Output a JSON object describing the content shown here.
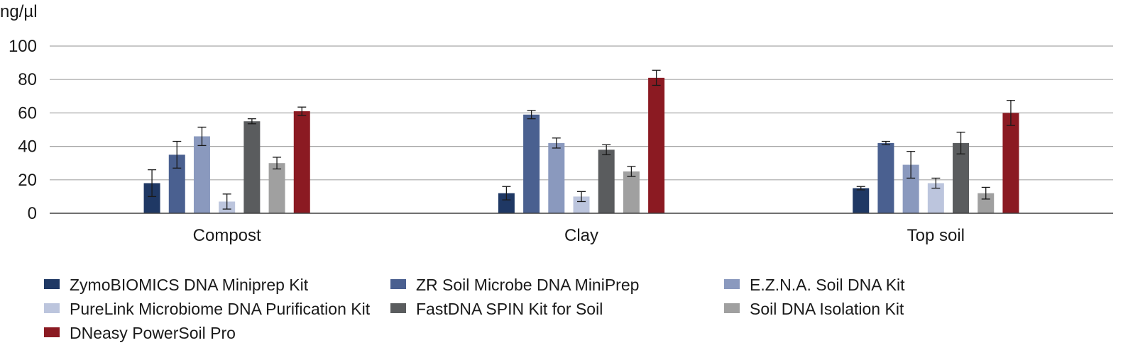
{
  "chart_data": {
    "type": "bar",
    "title": "",
    "xlabel": "",
    "ylabel": "ng/µl",
    "ylim": [
      0,
      100
    ],
    "yticks": [
      "0",
      "20",
      "40",
      "60",
      "80",
      "100"
    ],
    "grid": true,
    "legend_position": "bottom",
    "categories": [
      "Compost",
      "Clay",
      "Top soil"
    ],
    "series": [
      {
        "name": "ZymoBIOMICS DNA Miniprep Kit",
        "color": "#1f3864",
        "values": [
          18,
          12,
          15
        ],
        "errors": [
          8,
          4,
          1
        ]
      },
      {
        "name": "ZR Soil Microbe DNA MiniPrep",
        "color": "#4a6090",
        "values": [
          35,
          59,
          42
        ],
        "errors": [
          8,
          2.5,
          1
        ]
      },
      {
        "name": "E.Z.N.A. Soil DNA Kit",
        "color": "#8a99be",
        "values": [
          46,
          42,
          29
        ],
        "errors": [
          5.5,
          3,
          8
        ]
      },
      {
        "name": "PureLink Microbiome DNA Purification Kit",
        "color": "#bcc5dd",
        "values": [
          7,
          10,
          18
        ],
        "errors": [
          4.5,
          3,
          3
        ]
      },
      {
        "name": "FastDNA SPIN Kit for Soil",
        "color": "#5a5c5e",
        "values": [
          55,
          38,
          42
        ],
        "errors": [
          1.5,
          3,
          6.5
        ]
      },
      {
        "name": "Soil DNA Isolation Kit",
        "color": "#a0a0a0",
        "values": [
          30,
          25,
          12
        ],
        "errors": [
          3.5,
          3,
          3.5
        ]
      },
      {
        "name": "DNeasy PowerSoil Pro",
        "color": "#8b1a22",
        "values": [
          61,
          81,
          60
        ],
        "errors": [
          2.5,
          4.5,
          7.5
        ]
      }
    ]
  }
}
